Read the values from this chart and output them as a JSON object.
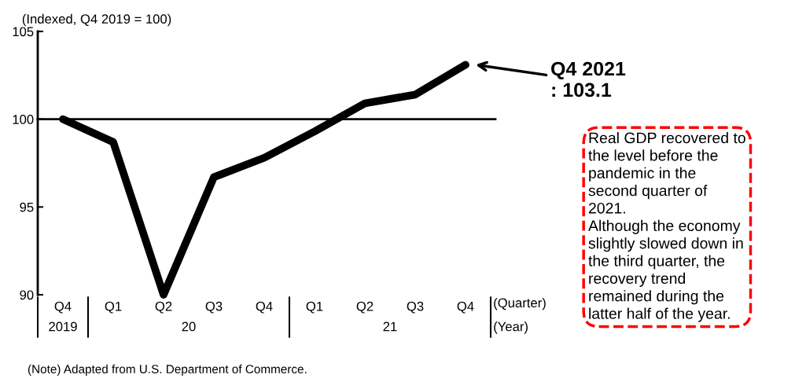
{
  "chart_data": {
    "type": "line",
    "ylabel": "(Indexed, Q4 2019 = 100)",
    "categories": [
      "Q4",
      "Q1",
      "Q2",
      "Q3",
      "Q4",
      "Q1",
      "Q2",
      "Q3",
      "Q4"
    ],
    "series": [
      {
        "color": "#000000",
        "values": [
          100,
          98.7,
          90.0,
          96.7,
          97.8,
          99.3,
          100.9,
          101.4,
          103.1
        ]
      }
    ],
    "ylim": [
      90,
      105
    ],
    "yticks": [
      90,
      95,
      100,
      105
    ],
    "ref_lines": [
      {
        "axis": "y",
        "value": 100,
        "color": "#000000"
      }
    ],
    "grid": false,
    "legend": false,
    "marker": "none",
    "line_style": "solid",
    "annotations": [
      "(Quarter)",
      "(Year)",
      "2019",
      "20",
      "21",
      "Q4 2021\n: 103.1",
      "Real GDP recovered to\nthe level before the\npandemic in the\nsecond quarter of\n2021.\nAlthough the economy\nslightly slowed down in\nthe third quarter, the\nrecovery trend\nremained during the\nlatter half of the year.",
      "(Note) Adapted from U.S. Department of Commerce."
    ]
  }
}
